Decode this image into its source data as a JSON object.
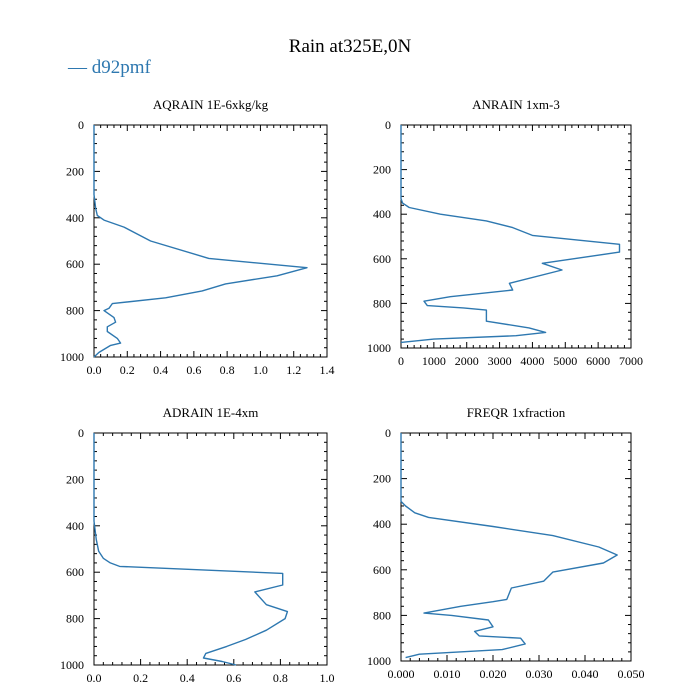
{
  "figure": {
    "title": "Rain at325E,0N",
    "legend": [
      "— d92pmf"
    ],
    "line_color": "#2e78b0"
  },
  "chart_data": [
    {
      "type": "line",
      "title": "AQRAIN  1E-6xkg/kg",
      "xlabel": "",
      "ylabel": "",
      "xlim": [
        0,
        1.4
      ],
      "ylim": [
        1000,
        0
      ],
      "xticks": [
        0,
        0.2,
        0.4,
        0.6,
        0.8,
        1.0,
        1.2,
        1.4
      ],
      "xtick_labels": [
        "0.0",
        "0.2",
        "0.4",
        "0.6",
        "0.8",
        "1.0",
        "1.2",
        "1.4"
      ],
      "yticks": [
        0,
        200,
        400,
        600,
        800,
        1000
      ],
      "ytick_labels": [
        "0",
        "200",
        "400",
        "600",
        "800",
        "1000"
      ],
      "series": [
        {
          "name": "d92pmf",
          "x": [
            0,
            0,
            0.01,
            0.02,
            0.06,
            0.18,
            0.34,
            0.69,
            1.28,
            1.1,
            0.79,
            0.65,
            0.43,
            0.11,
            0.09,
            0.06,
            0.12,
            0.13,
            0.08,
            0.08,
            0.14,
            0.16,
            0.1,
            0.03,
            0
          ],
          "y": [
            0,
            300,
            360,
            390,
            410,
            440,
            500,
            575,
            615,
            650,
            685,
            715,
            745,
            770,
            790,
            800,
            830,
            850,
            870,
            890,
            920,
            940,
            950,
            980,
            1000
          ]
        }
      ]
    },
    {
      "type": "line",
      "title": "ANRAIN  1xm-3",
      "xlabel": "",
      "ylabel": "",
      "xlim": [
        0,
        7000
      ],
      "ylim": [
        1000,
        0
      ],
      "xticks": [
        0,
        1000,
        2000,
        3000,
        4000,
        5000,
        6000,
        7000
      ],
      "xtick_labels": [
        "0",
        "1000",
        "2000",
        "3000",
        "4000",
        "5000",
        "6000",
        "7000"
      ],
      "yticks": [
        0,
        200,
        400,
        600,
        800,
        1000
      ],
      "ytick_labels": [
        "0",
        "200",
        "400",
        "600",
        "800",
        "1000"
      ],
      "series": [
        {
          "name": "d92pmf",
          "x": [
            0,
            0,
            50,
            250,
            1200,
            2600,
            3400,
            4000,
            6650,
            6650,
            4300,
            4900,
            3300,
            3400,
            1500,
            700,
            800,
            1900,
            2600,
            2600,
            3900,
            4400,
            3500,
            1000,
            0
          ],
          "y": [
            0,
            330,
            350,
            370,
            400,
            430,
            460,
            495,
            535,
            570,
            620,
            650,
            710,
            740,
            770,
            790,
            810,
            820,
            830,
            880,
            910,
            930,
            945,
            960,
            975
          ]
        }
      ]
    },
    {
      "type": "line",
      "title": "ADRAIN  1E-4xm",
      "xlabel": "",
      "ylabel": "",
      "xlim": [
        0,
        1.0
      ],
      "ylim": [
        1000,
        0
      ],
      "xticks": [
        0,
        0.2,
        0.4,
        0.6,
        0.8,
        1.0
      ],
      "xtick_labels": [
        "0.0",
        "0.2",
        "0.4",
        "0.6",
        "0.8",
        "1.0"
      ],
      "yticks": [
        0,
        200,
        400,
        600,
        800,
        1000
      ],
      "ytick_labels": [
        "0",
        "200",
        "400",
        "600",
        "800",
        "1000"
      ],
      "series": [
        {
          "name": "d92pmf",
          "x": [
            0,
            0,
            0.01,
            0.02,
            0.04,
            0.07,
            0.11,
            0.81,
            0.81,
            0.69,
            0.74,
            0.83,
            0.82,
            0.74,
            0.65,
            0.57,
            0.48,
            0.47,
            0.55,
            0.61
          ],
          "y": [
            0,
            380,
            460,
            510,
            540,
            560,
            575,
            605,
            655,
            685,
            740,
            770,
            800,
            850,
            890,
            920,
            950,
            970,
            985,
            1000
          ]
        }
      ]
    },
    {
      "type": "line",
      "title": "FREQR  1xfraction",
      "xlabel": "",
      "ylabel": "",
      "xlim": [
        0,
        0.05
      ],
      "ylim": [
        1000,
        0
      ],
      "xticks": [
        0,
        0.01,
        0.02,
        0.03,
        0.04,
        0.05
      ],
      "xtick_labels": [
        "0.000",
        "0.010",
        "0.020",
        "0.030",
        "0.040",
        "0.050"
      ],
      "yticks": [
        0,
        200,
        400,
        600,
        800,
        1000
      ],
      "ytick_labels": [
        "0",
        "200",
        "400",
        "600",
        "800",
        "1000"
      ],
      "series": [
        {
          "name": "d92pmf",
          "x": [
            0,
            0,
            0.001,
            0.003,
            0.006,
            0.02,
            0.033,
            0.043,
            0.047,
            0.044,
            0.033,
            0.031,
            0.024,
            0.023,
            0.02,
            0.013,
            0.005,
            0.011,
            0.019,
            0.02,
            0.016,
            0.017,
            0.026,
            0.027,
            0.022,
            0.004,
            0.001
          ],
          "y": [
            0,
            300,
            320,
            350,
            370,
            410,
            450,
            500,
            535,
            570,
            610,
            650,
            680,
            730,
            740,
            760,
            790,
            800,
            820,
            850,
            870,
            890,
            900,
            925,
            950,
            970,
            985
          ]
        }
      ]
    }
  ]
}
